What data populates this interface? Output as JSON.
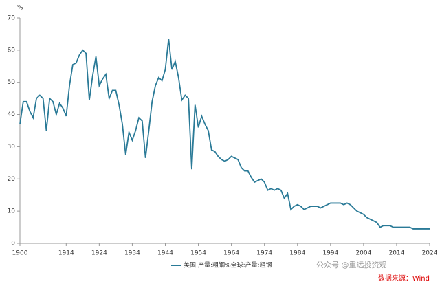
{
  "chart_data": {
    "type": "line",
    "y_label": "%",
    "x": [
      1900,
      1901,
      1902,
      1903,
      1904,
      1905,
      1906,
      1907,
      1908,
      1909,
      1910,
      1911,
      1912,
      1913,
      1914,
      1915,
      1916,
      1917,
      1918,
      1919,
      1920,
      1921,
      1922,
      1923,
      1924,
      1925,
      1926,
      1927,
      1928,
      1929,
      1930,
      1931,
      1932,
      1933,
      1934,
      1935,
      1936,
      1937,
      1938,
      1939,
      1940,
      1941,
      1942,
      1943,
      1944,
      1945,
      1946,
      1947,
      1948,
      1949,
      1950,
      1951,
      1952,
      1953,
      1954,
      1955,
      1956,
      1957,
      1958,
      1959,
      1960,
      1961,
      1962,
      1963,
      1964,
      1965,
      1966,
      1967,
      1968,
      1969,
      1970,
      1971,
      1972,
      1973,
      1974,
      1975,
      1976,
      1977,
      1978,
      1979,
      1980,
      1981,
      1982,
      1983,
      1984,
      1985,
      1986,
      1987,
      1988,
      1989,
      1990,
      1991,
      1992,
      1993,
      1994,
      1995,
      1996,
      1997,
      1998,
      1999,
      2000,
      2001,
      2002,
      2003,
      2004,
      2005,
      2006,
      2007,
      2008,
      2009,
      2010,
      2011,
      2012,
      2013,
      2014,
      2015,
      2016,
      2017,
      2018,
      2019,
      2020,
      2021,
      2022,
      2023,
      2024
    ],
    "series": [
      {
        "name": "美国:产量:粗钢%全球:产量:粗钢",
        "color": "#2a7a97",
        "values": [
          37,
          44,
          44,
          41,
          39,
          45,
          46,
          45,
          35,
          45,
          44,
          40,
          43.5,
          42,
          39.5,
          49,
          55.5,
          56,
          58.5,
          60,
          59,
          44.5,
          52,
          58,
          49,
          51,
          52.5,
          45,
          47.5,
          47.5,
          43,
          37,
          27.5,
          34.5,
          32,
          35,
          39,
          38,
          26.5,
          35,
          44,
          49,
          51.5,
          50.5,
          54,
          63.5,
          54,
          56.5,
          51.5,
          44.5,
          46,
          45,
          23,
          43,
          36,
          39.5,
          37,
          35,
          29,
          28.5,
          27,
          26,
          25.5,
          26,
          27,
          26.5,
          26,
          23.5,
          22.5,
          22.5,
          20.5,
          19,
          19.5,
          20,
          19,
          16.5,
          17,
          16.5,
          17,
          16.5,
          14,
          15.5,
          10.5,
          11.5,
          12,
          11.5,
          10.5,
          11,
          11.5,
          11.5,
          11.5,
          11,
          11.5,
          12,
          12.5,
          12.5,
          12.5,
          12.5,
          12,
          12.5,
          12,
          11,
          10,
          9.5,
          9,
          8,
          7.5,
          7,
          6.5,
          5,
          5.5,
          5.5,
          5.5,
          5,
          5,
          5,
          5,
          5,
          5,
          4.5,
          4.5,
          4.5,
          4.5,
          4.5,
          4.5
        ]
      }
    ],
    "xlim": [
      1900,
      2024
    ],
    "xticks": [
      1900,
      1914,
      1924,
      1934,
      1944,
      1954,
      1964,
      1974,
      1984,
      1994,
      2004,
      2014,
      2024
    ],
    "ylim": [
      0,
      70
    ],
    "yticks": [
      0,
      10,
      20,
      30,
      40,
      50,
      60,
      70
    ],
    "watermark": "公众号 @重远投资观",
    "source": "数据来源：Wind"
  }
}
